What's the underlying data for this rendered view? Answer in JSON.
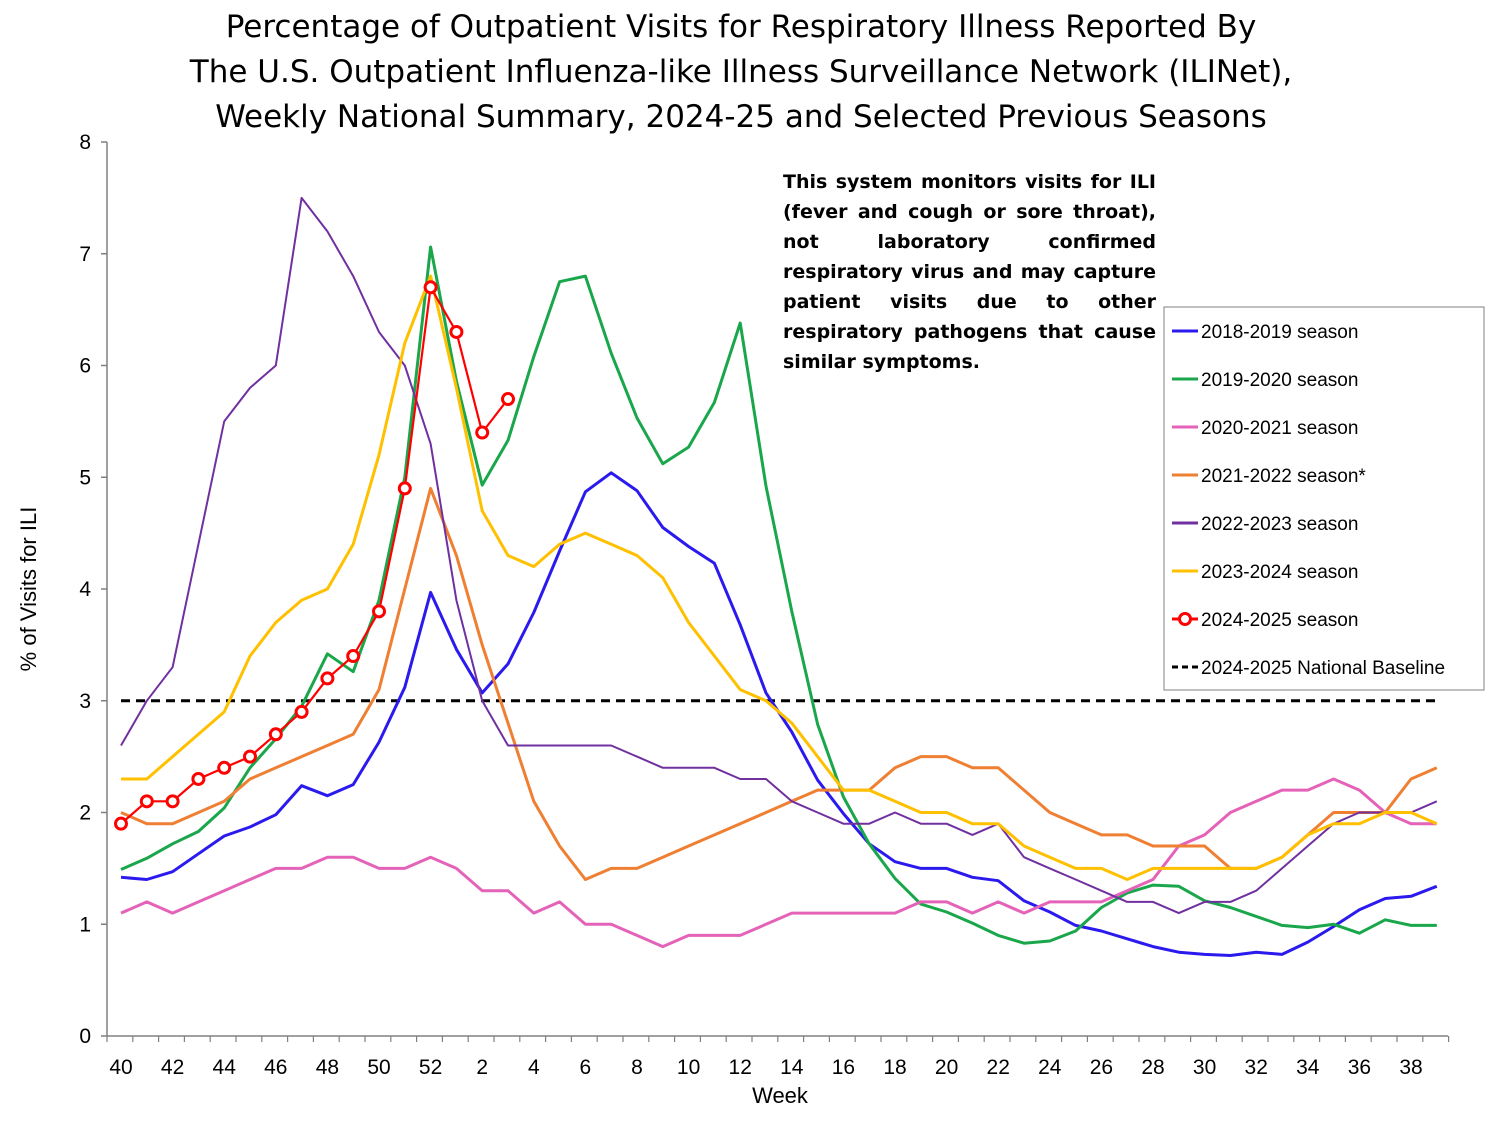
{
  "chart_data": {
    "type": "line",
    "title_lines": [
      "Percentage of Outpatient Visits for Respiratory Illness Reported By",
      "The U.S. Outpatient Influenza-like Illness Surveillance Network (ILINet),",
      "Weekly National Summary, 2024-25 and Selected Previous Seasons"
    ],
    "xlabel": "Week",
    "ylabel": "% of Visits for ILI",
    "ylim": [
      0,
      8
    ],
    "yticks": [
      0,
      1,
      2,
      3,
      4,
      5,
      6,
      7,
      8
    ],
    "x_weeks": [
      40,
      41,
      42,
      43,
      44,
      45,
      46,
      47,
      48,
      49,
      50,
      51,
      52,
      1,
      2,
      3,
      4,
      5,
      6,
      7,
      8,
      9,
      10,
      11,
      12,
      13,
      14,
      15,
      16,
      17,
      18,
      19,
      20,
      21,
      22,
      23,
      24,
      25,
      26,
      27,
      28,
      29,
      30,
      31,
      32,
      33,
      34,
      35,
      36,
      37,
      38,
      39
    ],
    "x_tick_labels": [
      "40",
      "42",
      "44",
      "46",
      "48",
      "50",
      "52",
      "2",
      "4",
      "6",
      "8",
      "10",
      "12",
      "14",
      "16",
      "18",
      "20",
      "22",
      "24",
      "26",
      "28",
      "30",
      "32",
      "34",
      "36",
      "38"
    ],
    "grid": false,
    "legend_position": "right",
    "annotation": "This system monitors visits for ILI (fever and cough or sore throat), not laboratory confirmed respiratory virus and may capture patient visits due to other respiratory pathogens that cause similar symptoms.",
    "baseline": {
      "name": "2024-2025 National Baseline",
      "value": 3.0,
      "color": "#000000"
    },
    "series": [
      {
        "name": "2018-2019 season",
        "color": "#2b1aee",
        "values": [
          1.42,
          1.4,
          1.47,
          1.63,
          1.79,
          1.87,
          1.98,
          2.24,
          2.15,
          2.25,
          2.63,
          3.12,
          3.97,
          3.46,
          3.07,
          3.33,
          3.79,
          4.34,
          4.87,
          5.04,
          4.88,
          4.55,
          4.38,
          4.23,
          3.68,
          3.07,
          2.72,
          2.29,
          1.99,
          1.72,
          1.56,
          1.5,
          1.5,
          1.42,
          1.39,
          1.21,
          1.11,
          0.99,
          0.94,
          0.87,
          0.8,
          0.75,
          0.73,
          0.72,
          0.75,
          0.73,
          0.84,
          0.98,
          1.13,
          1.23,
          1.25,
          1.34
        ]
      },
      {
        "name": "2019-2020 season",
        "color": "#1aa64a",
        "values": [
          1.49,
          1.59,
          1.72,
          1.83,
          2.04,
          2.4,
          2.66,
          2.95,
          3.42,
          3.26,
          3.9,
          5.0,
          7.06,
          5.86,
          4.93,
          5.33,
          6.08,
          6.75,
          6.8,
          6.11,
          5.53,
          5.12,
          5.27,
          5.67,
          6.38,
          4.92,
          3.8,
          2.79,
          2.14,
          1.72,
          1.41,
          1.18,
          1.11,
          1.01,
          0.9,
          0.83,
          0.85,
          0.94,
          1.15,
          1.28,
          1.35,
          1.34,
          1.21,
          1.15,
          1.07,
          0.99,
          0.97,
          1.0,
          0.92,
          1.04,
          0.99,
          0.99
        ]
      },
      {
        "name": "2020-2021 season",
        "color": "#e463b8",
        "values": [
          1.1,
          1.2,
          1.1,
          1.2,
          1.3,
          1.4,
          1.5,
          1.5,
          1.6,
          1.6,
          1.5,
          1.5,
          1.6,
          1.5,
          1.3,
          1.3,
          1.1,
          1.2,
          1.0,
          1.0,
          0.9,
          0.8,
          0.9,
          0.9,
          0.9,
          1.0,
          1.1,
          1.1,
          1.1,
          1.1,
          1.1,
          1.2,
          1.2,
          1.1,
          1.2,
          1.1,
          1.2,
          1.2,
          1.2,
          1.3,
          1.4,
          1.7,
          1.8,
          2.0,
          2.1,
          2.2,
          2.2,
          2.3,
          2.2,
          2.0,
          1.9,
          1.9
        ]
      },
      {
        "name": "2021-2022 season*",
        "color": "#ef7f32",
        "values": [
          2.0,
          1.9,
          1.9,
          2.0,
          2.1,
          2.3,
          2.4,
          2.5,
          2.6,
          2.7,
          3.1,
          4.0,
          4.9,
          4.3,
          3.5,
          2.8,
          2.1,
          1.7,
          1.4,
          1.5,
          1.5,
          1.6,
          1.7,
          1.8,
          1.9,
          2.0,
          2.1,
          2.2,
          2.2,
          2.2,
          2.4,
          2.5,
          2.5,
          2.4,
          2.4,
          2.2,
          2.0,
          1.9,
          1.8,
          1.8,
          1.7,
          1.7,
          1.7,
          1.5,
          1.5,
          1.6,
          1.8,
          2.0,
          2.0,
          2.0,
          2.3,
          2.4
        ]
      },
      {
        "name": "2022-2023 season",
        "color": "#7030a0",
        "values": [
          2.6,
          3.0,
          3.3,
          4.4,
          5.5,
          5.8,
          6.0,
          7.5,
          7.2,
          6.8,
          6.3,
          6.0,
          5.3,
          3.9,
          3.0,
          2.6,
          2.6,
          2.6,
          2.6,
          2.6,
          2.5,
          2.4,
          2.4,
          2.4,
          2.3,
          2.3,
          2.1,
          2.0,
          1.9,
          1.9,
          2.0,
          1.9,
          1.9,
          1.8,
          1.9,
          1.6,
          1.5,
          1.4,
          1.3,
          1.2,
          1.2,
          1.1,
          1.2,
          1.2,
          1.3,
          1.5,
          1.7,
          1.9,
          2.0,
          2.0,
          2.0,
          2.1
        ]
      },
      {
        "name": "2023-2024 season",
        "color": "#ffc000",
        "values": [
          2.3,
          2.3,
          2.5,
          2.7,
          2.9,
          3.4,
          3.7,
          3.9,
          4.0,
          4.4,
          5.2,
          6.2,
          6.8,
          5.8,
          4.7,
          4.3,
          4.2,
          4.4,
          4.5,
          4.4,
          4.3,
          4.1,
          3.7,
          3.4,
          3.1,
          3.0,
          2.8,
          2.5,
          2.2,
          2.2,
          2.1,
          2.0,
          2.0,
          1.9,
          1.9,
          1.7,
          1.6,
          1.5,
          1.5,
          1.4,
          1.5,
          1.5,
          1.5,
          1.5,
          1.5,
          1.6,
          1.8,
          1.9,
          1.9,
          2.0,
          2.0,
          1.9
        ]
      },
      {
        "name": "2024-2025 season",
        "color": "#ff0000",
        "markers": true,
        "values": [
          1.9,
          2.1,
          2.1,
          2.3,
          2.4,
          2.5,
          2.7,
          2.9,
          3.2,
          3.4,
          3.8,
          4.9,
          6.7,
          6.3,
          5.4,
          5.7
        ]
      }
    ]
  }
}
